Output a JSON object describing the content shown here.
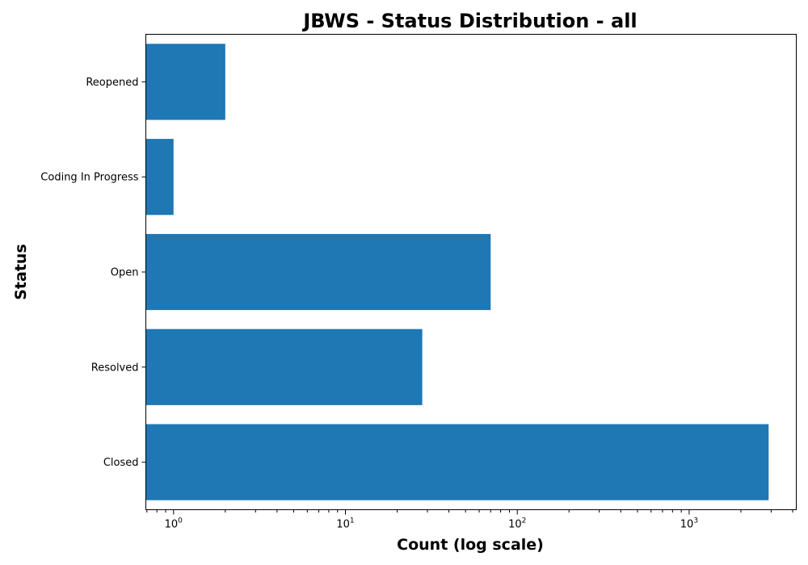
{
  "chart_data": {
    "type": "bar",
    "orientation": "horizontal",
    "title": "JBWS - Status Distribution - all",
    "xlabel": "Count (log scale)",
    "ylabel": "Status",
    "xscale": "log",
    "xlim": [
      0.69,
      4200
    ],
    "categories": [
      "Closed",
      "Resolved",
      "Open",
      "Coding In Progress",
      "Reopened"
    ],
    "values": [
      2900,
      28,
      70,
      1,
      2
    ],
    "bar_color": "#1f77b4",
    "x_ticks": [
      {
        "value": 1,
        "base": "10",
        "exp": "0"
      },
      {
        "value": 10,
        "base": "10",
        "exp": "1"
      },
      {
        "value": 100,
        "base": "10",
        "exp": "2"
      },
      {
        "value": 1000,
        "base": "10",
        "exp": "3"
      }
    ],
    "grid": false,
    "legend": "none"
  }
}
